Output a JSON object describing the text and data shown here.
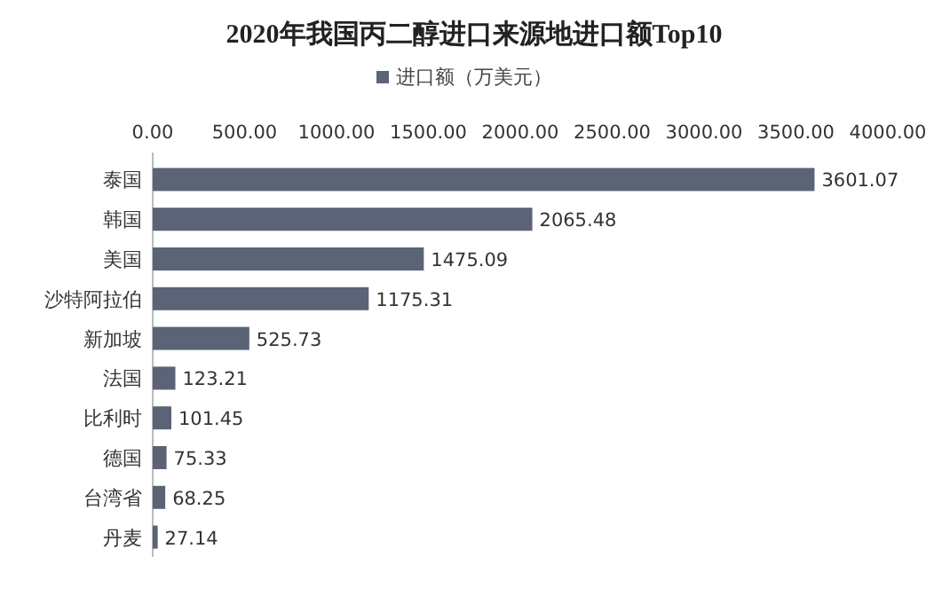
{
  "chart_data": {
    "type": "bar",
    "orientation": "horizontal",
    "title": "2020年我国丙二醇进口来源地进口额Top10",
    "categories": [
      "泰国",
      "韩国",
      "美国",
      "沙特阿拉伯",
      "新加坡",
      "法国",
      "比利时",
      "德国",
      "台湾省",
      "丹麦"
    ],
    "series": [
      {
        "name": "进口额（万美元）",
        "color": "#5b6377",
        "values": [
          3601.07,
          2065.48,
          1475.09,
          1175.31,
          525.73,
          123.21,
          101.45,
          75.33,
          68.25,
          27.14
        ]
      }
    ],
    "xlim": [
      0,
      4000
    ],
    "xticks": [
      {
        "value": 0,
        "label": "0.00"
      },
      {
        "value": 500,
        "label": "500.00"
      },
      {
        "value": 1000,
        "label": "1000.00"
      },
      {
        "value": 1500,
        "label": "1500.00"
      },
      {
        "value": 2000,
        "label": "2000.00"
      },
      {
        "value": 2500,
        "label": "2500.00"
      },
      {
        "value": 3000,
        "label": "3000.00"
      },
      {
        "value": 3500,
        "label": "3500.00"
      },
      {
        "value": 4000,
        "label": "4000.00"
      }
    ],
    "data_labels": true,
    "legend": "top",
    "grid": false
  }
}
